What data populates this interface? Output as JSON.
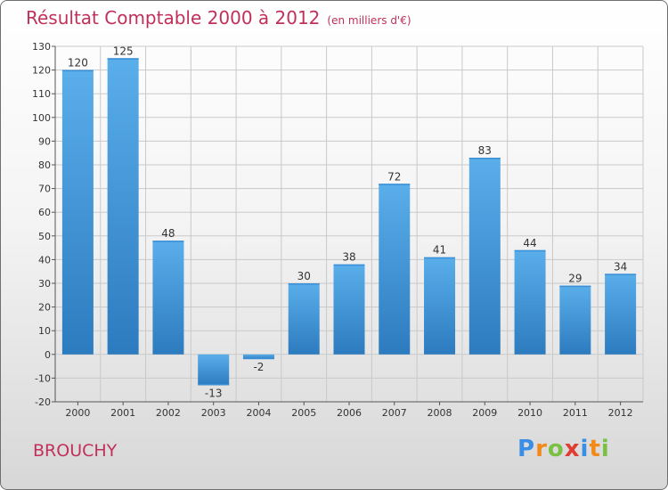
{
  "title": "Résultat Comptable 2000 à 2012",
  "subtitle": "(en milliers d'€)",
  "commune": "BROUCHY",
  "logo": {
    "letters": [
      "P",
      "r",
      "o",
      "x",
      "i",
      "t",
      "i"
    ],
    "colors": [
      "#3a8ee6",
      "#f28a1a",
      "#7ac143",
      "#e03c31",
      "#3a8ee6",
      "#f28a1a",
      "#7ac143"
    ]
  },
  "colors": {
    "title": "#c0305a",
    "bar_top": "#5aaeea",
    "bar_bottom": "#2c7bbf"
  },
  "chart_data": {
    "type": "bar",
    "categories": [
      "2000",
      "2001",
      "2002",
      "2003",
      "2004",
      "2005",
      "2006",
      "2007",
      "2008",
      "2009",
      "2010",
      "2011",
      "2012"
    ],
    "values": [
      120,
      125,
      48,
      -13,
      -2,
      30,
      38,
      72,
      41,
      83,
      44,
      29,
      34
    ],
    "value_labels": [
      "120",
      "125",
      "48",
      "-13",
      "-2",
      "30",
      "38",
      "72",
      "41",
      "83",
      "44",
      "29",
      "34"
    ],
    "ylim": [
      -20,
      130
    ],
    "yticks": [
      -20,
      -10,
      0,
      10,
      20,
      30,
      40,
      50,
      60,
      70,
      80,
      90,
      100,
      110,
      120,
      130
    ],
    "ytick_labels": [
      "-20",
      "-10",
      "0",
      "10",
      "20",
      "30",
      "40",
      "50",
      "60",
      "70",
      "80",
      "90",
      "100",
      "110",
      "120",
      "130"
    ],
    "grid": true,
    "xlabel": "",
    "ylabel": ""
  }
}
